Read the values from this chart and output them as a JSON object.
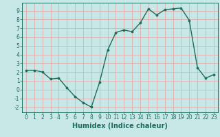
{
  "x": [
    0,
    1,
    2,
    3,
    4,
    5,
    6,
    7,
    8,
    9,
    10,
    11,
    12,
    13,
    14,
    15,
    16,
    17,
    18,
    19,
    20,
    21,
    22,
    23
  ],
  "y": [
    2.2,
    2.2,
    2.0,
    1.2,
    1.3,
    0.2,
    -0.8,
    -1.5,
    -2.0,
    0.8,
    4.5,
    6.5,
    6.8,
    6.6,
    7.6,
    9.2,
    8.5,
    9.1,
    9.2,
    9.3,
    7.9,
    2.5,
    1.3,
    1.7
  ],
  "line_color": "#1a6b5a",
  "marker": "o",
  "markersize": 2.2,
  "linewidth": 1.0,
  "xlim": [
    -0.5,
    23.5
  ],
  "ylim": [
    -2.6,
    9.9
  ],
  "yticks": [
    -2,
    -1,
    0,
    1,
    2,
    3,
    4,
    5,
    6,
    7,
    8,
    9
  ],
  "xticks": [
    0,
    1,
    2,
    3,
    4,
    5,
    6,
    7,
    8,
    9,
    10,
    11,
    12,
    13,
    14,
    15,
    16,
    17,
    18,
    19,
    20,
    21,
    22,
    23
  ],
  "xlabel": "Humidex (Indice chaleur)",
  "bg_color": "#c8e8e8",
  "grid_color": "#e8a0a0",
  "axis_color": "#1a6b5a",
  "tick_color": "#1a6b5a",
  "label_fontsize": 7,
  "tick_fontsize": 5.5
}
